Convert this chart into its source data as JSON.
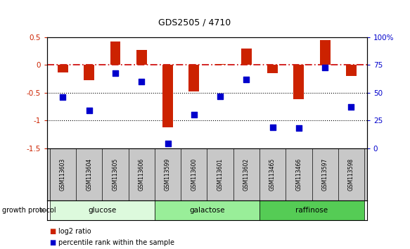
{
  "title": "GDS2505 / 4710",
  "samples": [
    "GSM113603",
    "GSM113604",
    "GSM113605",
    "GSM113606",
    "GSM113599",
    "GSM113600",
    "GSM113601",
    "GSM113602",
    "GSM113465",
    "GSM113466",
    "GSM113597",
    "GSM113598"
  ],
  "log2_ratio": [
    -0.13,
    -0.27,
    0.42,
    0.27,
    -1.12,
    -0.47,
    0.02,
    0.3,
    -0.15,
    -0.62,
    0.45,
    -0.2
  ],
  "percentile_rank": [
    46,
    34,
    68,
    60,
    4,
    30,
    47,
    62,
    19,
    18,
    73,
    37
  ],
  "groups": [
    {
      "label": "glucose",
      "start": 0,
      "end": 4,
      "color": "#ddfadd"
    },
    {
      "label": "galactose",
      "start": 4,
      "end": 8,
      "color": "#99ee99"
    },
    {
      "label": "raffinose",
      "start": 8,
      "end": 12,
      "color": "#55cc55"
    }
  ],
  "ylim_left": [
    -1.5,
    0.5
  ],
  "ylim_right": [
    0,
    100
  ],
  "yticks_left": [
    -1.5,
    -1.0,
    -0.5,
    0.0,
    0.5
  ],
  "ytick_labels_left": [
    "-1.5",
    "-1",
    "-0.5",
    "0",
    "0.5"
  ],
  "yticks_right": [
    0,
    25,
    50,
    75,
    100
  ],
  "ytick_labels_right": [
    "0",
    "25",
    "50",
    "75",
    "100%"
  ],
  "bar_color": "#cc2200",
  "dot_color": "#0000cc",
  "hline_color": "#cc0000",
  "dotted_line_color": "#000000",
  "bg_color": "#ffffff",
  "plot_bg": "#ffffff",
  "bar_width": 0.4,
  "dot_size": 40,
  "label_bg": "#c8c8c8",
  "growth_protocol_text": "growth protocol",
  "legend_bar_label": "log2 ratio",
  "legend_dot_label": "percentile rank within the sample"
}
